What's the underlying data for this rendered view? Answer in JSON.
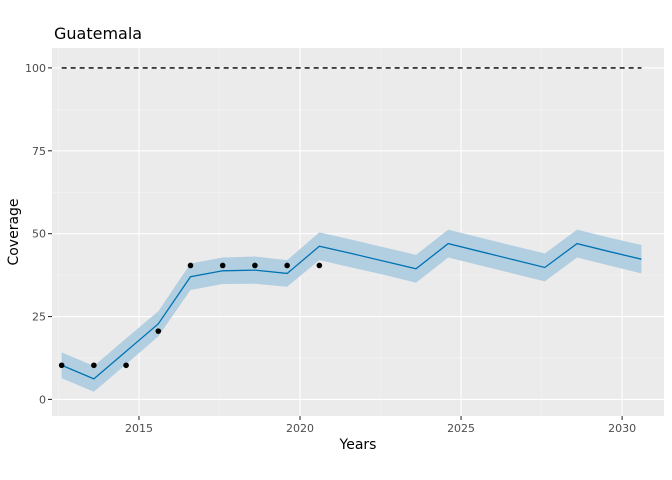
{
  "chart_data": {
    "type": "line",
    "title": "Guatemala",
    "xlabel": "Years",
    "ylabel": "Coverage",
    "xlim": [
      2012.3,
      2031.3
    ],
    "ylim": [
      -5,
      106
    ],
    "x_ticks": [
      2015,
      2020,
      2025,
      2030
    ],
    "x_tick_labels": [
      "2015",
      "2020",
      "2025",
      "2030"
    ],
    "y_ticks": [
      0,
      25,
      50,
      75,
      100
    ],
    "y_tick_labels": [
      "0",
      "25",
      "50",
      "75",
      "100"
    ],
    "grid": true,
    "legend": "none",
    "target_line": {
      "y": 100,
      "x_start": 2012.6,
      "x_end": 2030.6,
      "style": "dashed"
    },
    "fitted": {
      "x": [
        2012.6,
        2013.6,
        2014.6,
        2015.6,
        2016.6,
        2017.6,
        2018.6,
        2019.6,
        2020.6,
        2021.6,
        2022.6,
        2023.6,
        2024.6,
        2025.6,
        2026.6,
        2027.6,
        2028.6,
        2029.6,
        2030.6
      ],
      "y": [
        10.3,
        6.2,
        14.5,
        22.8,
        37.0,
        38.8,
        39.0,
        38.0,
        46.2,
        44.0,
        41.7,
        39.4,
        47.0,
        44.6,
        42.2,
        39.8,
        47.0,
        44.6,
        42.3
      ],
      "lower": [
        6.4,
        2.3,
        10.6,
        19.0,
        33.0,
        34.8,
        34.9,
        34.0,
        42.0,
        39.8,
        37.6,
        35.2,
        42.8,
        40.4,
        38.0,
        35.6,
        42.8,
        40.4,
        38.0
      ],
      "upper": [
        14.2,
        10.1,
        18.4,
        26.6,
        41.0,
        42.8,
        43.1,
        42.0,
        50.4,
        48.2,
        45.9,
        43.6,
        51.2,
        48.8,
        46.4,
        44.0,
        51.2,
        48.8,
        46.6
      ]
    },
    "observed": {
      "x": [
        2012.6,
        2013.6,
        2014.6,
        2015.6,
        2016.6,
        2017.6,
        2018.6,
        2019.6,
        2020.6
      ],
      "y": [
        10.3,
        10.3,
        10.3,
        20.6,
        40.4,
        40.4,
        40.4,
        40.4,
        40.4
      ]
    },
    "colors": {
      "panel": "#ebebeb",
      "grid_major": "#ffffff",
      "grid_minor": "#f4f4f4",
      "line": "#0072b2",
      "ribbon": "#b2cfe2",
      "points": "#000000",
      "target": "#000000"
    }
  }
}
